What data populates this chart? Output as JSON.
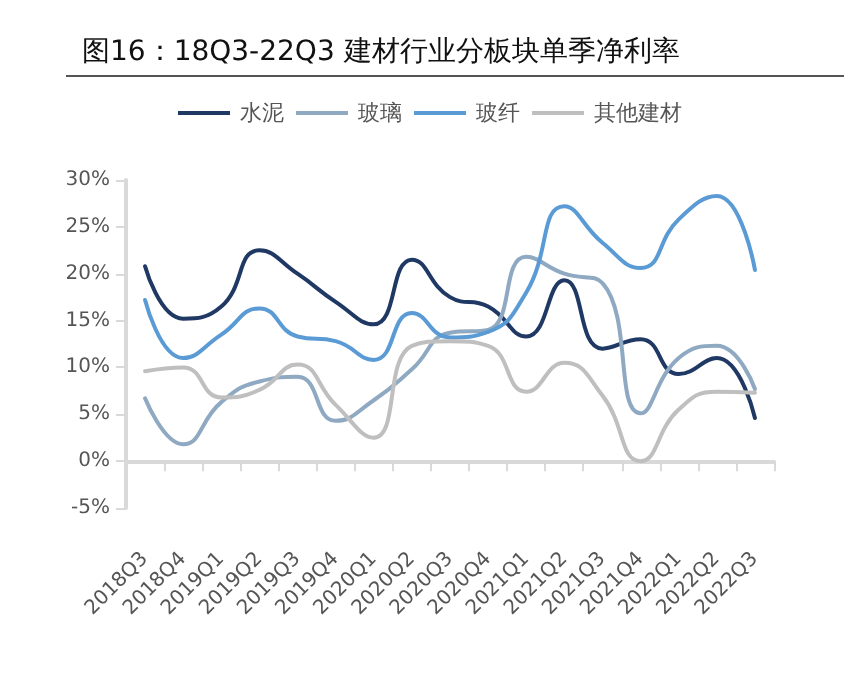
{
  "chart_data": {
    "type": "line",
    "title": "图16：18Q3-22Q3 建材行业分板块单季净利率",
    "categories": [
      "2018Q3",
      "2018Q4",
      "2019Q1",
      "2019Q2",
      "2019Q3",
      "2019Q4",
      "2020Q1",
      "2020Q2",
      "2020Q3",
      "2020Q4",
      "2021Q1",
      "2021Q2",
      "2021Q3",
      "2021Q4",
      "2022Q1",
      "2022Q2",
      "2022Q3"
    ],
    "series": [
      {
        "name": "水泥",
        "color": "#1f3864",
        "values": [
          20.8,
          15.2,
          16.5,
          22.5,
          20,
          17,
          14.6,
          21.5,
          17.5,
          16.5,
          13.3,
          19.3,
          12,
          13,
          9.3,
          11,
          4.6
        ]
      },
      {
        "name": "玻璃",
        "color": "#8ea9c1",
        "values": [
          6.7,
          1.8,
          6.3,
          8.5,
          9,
          4.3,
          6.5,
          9.8,
          13.7,
          14,
          21.8,
          20,
          19,
          5.1,
          11,
          12.3,
          7.7
        ]
      },
      {
        "name": "玻纤",
        "color": "#5b9bd5",
        "values": [
          17.2,
          11,
          13.5,
          16.3,
          13.3,
          12.8,
          10.8,
          15.8,
          13.2,
          13.8,
          18,
          27.2,
          23.3,
          20.6,
          25.8,
          28.3,
          20.4
        ]
      },
      {
        "name": "其他建材",
        "color": "#bfbfbf",
        "values": [
          9.6,
          10,
          6.8,
          7.6,
          10.3,
          6,
          2.5,
          12.3,
          12.8,
          12.3,
          7.4,
          10.5,
          7,
          0,
          5.5,
          7.4,
          7.3
        ]
      }
    ],
    "ylim": [
      -5,
      30
    ],
    "yticks": [
      {
        "value": -5,
        "label": "-5%"
      },
      {
        "value": 0,
        "label": "0%"
      },
      {
        "value": 5,
        "label": "5%"
      },
      {
        "value": 10,
        "label": "10%"
      },
      {
        "value": 15,
        "label": "15%"
      },
      {
        "value": 20,
        "label": "20%"
      },
      {
        "value": 25,
        "label": "25%"
      },
      {
        "value": 30,
        "label": "30%"
      }
    ],
    "legend": "top",
    "marker": "none",
    "line_style": "solid"
  }
}
